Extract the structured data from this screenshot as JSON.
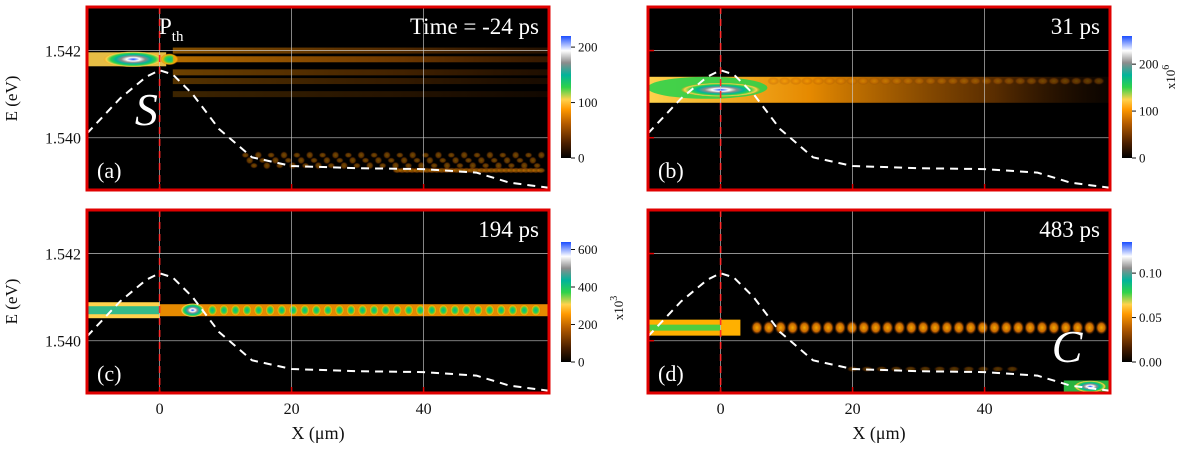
{
  "chart_data": {
    "type": "heatmap",
    "xlabel": "X (μm)",
    "ylabel": "E (eV)",
    "xlim": [
      -11,
      59
    ],
    "ylim": [
      1.5388,
      1.543
    ],
    "x_ticks": [
      0,
      20,
      40
    ],
    "x_tick_labels": [
      "0",
      "20",
      "40"
    ],
    "y_ticks": [
      1.542,
      1.54
    ],
    "y_tick_labels": [
      "1.542",
      "1.540"
    ],
    "grid": true,
    "colorscale": [
      "#000000",
      "#4a1e00",
      "#b35a00",
      "#ff9900",
      "#ffd24d",
      "#2fd24a",
      "#00b49a",
      "#8c8c8c",
      "#ffffff",
      "#1a4dff"
    ],
    "potential_profile": {
      "x": [
        -11,
        -6,
        -2,
        0,
        2,
        5,
        9,
        14,
        20,
        30,
        40,
        48,
        53,
        59
      ],
      "E": [
        1.5401,
        1.5409,
        1.5414,
        1.54155,
        1.54145,
        1.541,
        1.5402,
        1.53955,
        1.53935,
        1.5393,
        1.53928,
        1.5392,
        1.53897,
        1.53885
      ]
    },
    "panels": [
      {
        "label": "(a)",
        "time": "Time = -24 ps",
        "threshold_label": "P",
        "threshold_sub": "th",
        "letter": "S",
        "colorbar": {
          "ticks": [
            0,
            100,
            200
          ],
          "labels": [
            "0",
            "100",
            "200"
          ],
          "max": 220,
          "multiplier": ""
        },
        "condensate_E": 1.5418
      },
      {
        "label": "(b)",
        "time": "31 ps",
        "colorbar": {
          "ticks": [
            0,
            100,
            200
          ],
          "labels": [
            "0",
            "100",
            "200"
          ],
          "max": 260,
          "multiplier_base": "x10",
          "multiplier_exp": "6"
        },
        "condensate_E": 1.5411
      },
      {
        "label": "(c)",
        "time": "194 ps",
        "colorbar": {
          "ticks": [
            0,
            200,
            400,
            600
          ],
          "labels": [
            "0",
            "200",
            "400",
            "600"
          ],
          "max": 640,
          "multiplier_base": "x10",
          "multiplier_exp": "3"
        },
        "condensate_E": 1.5407
      },
      {
        "label": "(d)",
        "time": "483 ps",
        "letter": "C",
        "colorbar": {
          "ticks": [
            0,
            0.05,
            0.1
          ],
          "labels": [
            "0.00",
            "0.05",
            "0.10"
          ],
          "max": 0.135,
          "multiplier": ""
        },
        "condensate_E": 1.5403
      }
    ]
  }
}
